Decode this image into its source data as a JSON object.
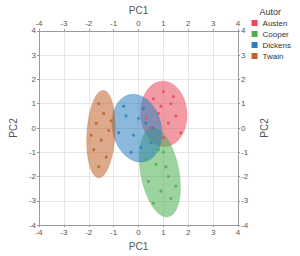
{
  "chart_data": {
    "type": "scatter",
    "x_label": "PC1",
    "y_label": "PC2",
    "legend_title": "Autor",
    "legend": "top-right",
    "xlim": [
      -4,
      4
    ],
    "xticks": [
      -4,
      -3,
      -2,
      -1,
      0,
      1,
      2,
      3,
      4
    ],
    "ylim": [
      -4,
      4
    ],
    "yticks": [
      -4,
      -3,
      -2,
      -1,
      0,
      1,
      2,
      3,
      4
    ],
    "grid": true,
    "series": [
      {
        "name": "Austen",
        "color": "#e8495a",
        "x": [
          0.6,
          1.0,
          1.3,
          0.8,
          1.5,
          1.2,
          0.5,
          1.7,
          1.0,
          0.3,
          1.4,
          0.9
        ],
        "y": [
          1.2,
          1.5,
          1.0,
          0.6,
          0.5,
          0.2,
          0.0,
          -0.2,
          -0.4,
          0.4,
          1.3,
          0.9
        ]
      },
      {
        "name": "Cooper",
        "color": "#4caf50",
        "x": [
          0.5,
          1.0,
          0.7,
          1.2,
          0.4,
          0.9,
          1.3,
          0.6,
          1.1,
          1.5,
          0.8,
          0.3
        ],
        "y": [
          -0.5,
          -1.0,
          -1.5,
          -2.0,
          -2.2,
          -2.6,
          -2.9,
          -3.1,
          -1.6,
          -2.4,
          -0.9,
          -1.3
        ]
      },
      {
        "name": "Dickens",
        "color": "#2a7fc0",
        "x": [
          -0.5,
          0.2,
          -0.2,
          0.5,
          -0.8,
          0.3,
          -0.3,
          0.0,
          0.6,
          -0.6,
          0.1
        ],
        "y": [
          0.5,
          0.8,
          -0.3,
          -0.6,
          -0.2,
          0.2,
          -1.0,
          0.4,
          0.0,
          0.9,
          -0.8
        ]
      },
      {
        "name": "Twain",
        "color": "#c0622a",
        "x": [
          -1.6,
          -1.4,
          -1.7,
          -1.2,
          -1.5,
          -1.8,
          -1.3,
          -1.6,
          -1.1,
          -1.9
        ],
        "y": [
          1.0,
          0.6,
          0.2,
          -0.1,
          -0.5,
          -0.9,
          -1.2,
          -1.6,
          0.3,
          -0.3
        ]
      }
    ]
  }
}
